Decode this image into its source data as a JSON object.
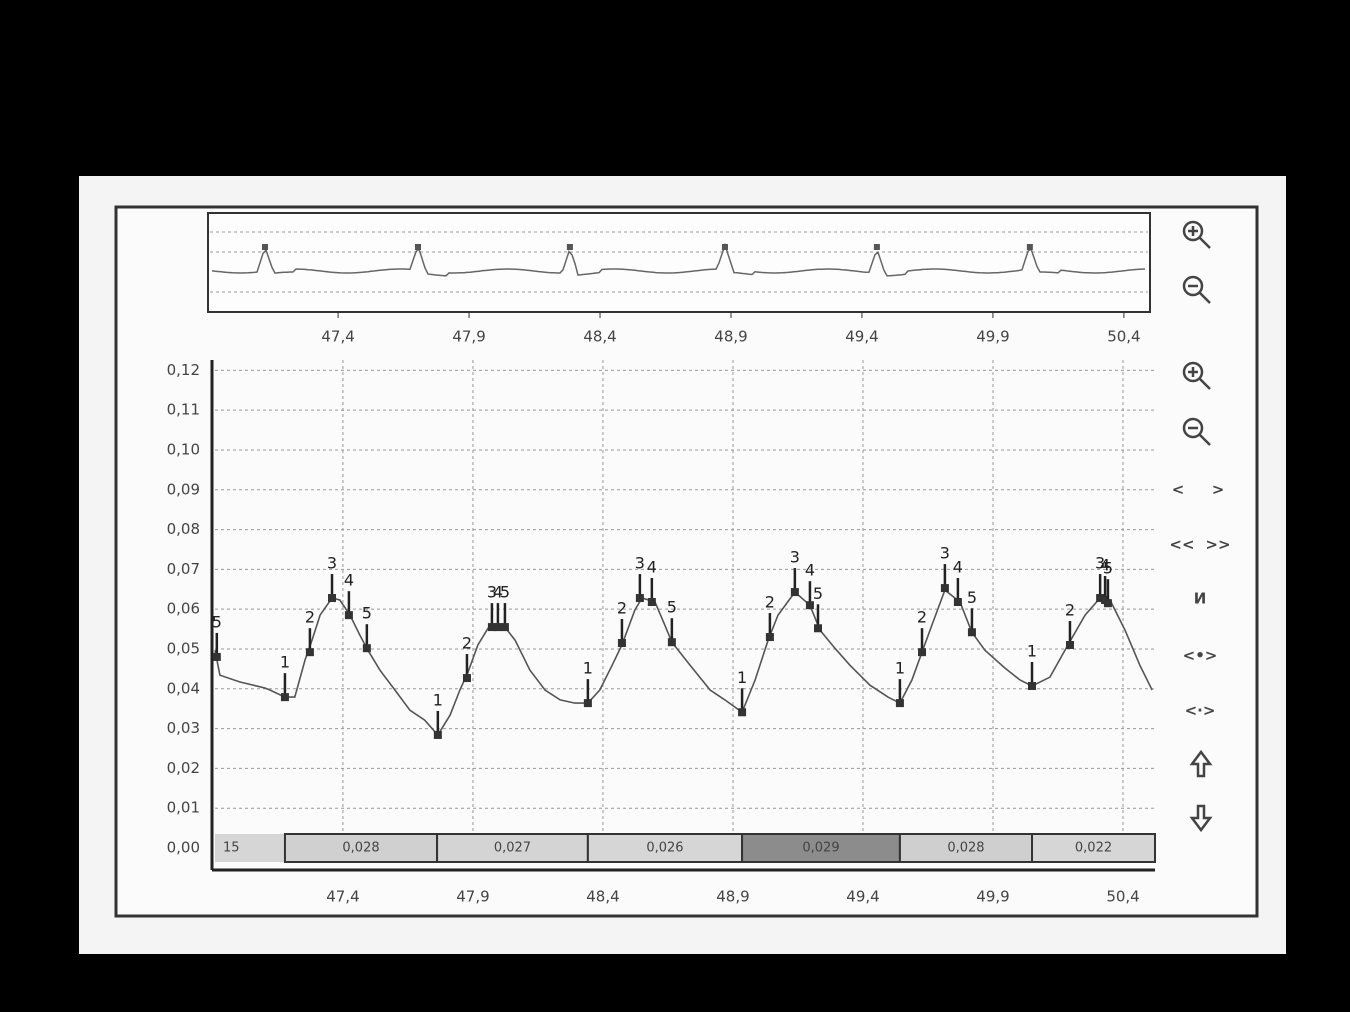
{
  "chart_data": [
    {
      "type": "ecg",
      "r_peaks": [
        47.121,
        47.705,
        48.285,
        48.877,
        49.457,
        50.041
      ],
      "xlim": [
        46.911,
        50.492
      ],
      "xticks": [
        {
          "value": 47.4,
          "label": "47,4"
        },
        {
          "value": 47.9,
          "label": "47,9"
        },
        {
          "value": 48.4,
          "label": "48,4"
        },
        {
          "value": 48.9,
          "label": "48,9"
        },
        {
          "value": 49.4,
          "label": "49,4"
        },
        {
          "value": 49.9,
          "label": "49,9"
        },
        {
          "value": 50.4,
          "label": "50,4"
        }
      ],
      "color": "#666666"
    },
    {
      "type": "line",
      "xlim": [
        46.908,
        50.523
      ],
      "ylim": [
        0,
        0.1226
      ],
      "grid": true,
      "xticks": [
        {
          "value": 47.4,
          "label": "47,4"
        },
        {
          "value": 47.9,
          "label": "47,9"
        },
        {
          "value": 48.4,
          "label": "48,4"
        },
        {
          "value": 48.9,
          "label": "48,9"
        },
        {
          "value": 49.4,
          "label": "49,4"
        },
        {
          "value": 49.9,
          "label": "49,9"
        },
        {
          "value": 50.4,
          "label": "50,4"
        }
      ],
      "yticks": [
        {
          "value": 0,
          "label": "0,00"
        },
        {
          "value": 0.01,
          "label": "0,01"
        },
        {
          "value": 0.02,
          "label": "0,02"
        },
        {
          "value": 0.03,
          "label": "0,03"
        },
        {
          "value": 0.04,
          "label": "0,04"
        },
        {
          "value": 0.05,
          "label": "0,05"
        },
        {
          "value": 0.06,
          "label": "0,06"
        },
        {
          "value": 0.07,
          "label": "0,07"
        },
        {
          "value": 0.08,
          "label": "0,08"
        },
        {
          "value": 0.09,
          "label": "0,09"
        },
        {
          "value": 0.1,
          "label": "0,10"
        },
        {
          "value": 0.11,
          "label": "0,11"
        },
        {
          "value": 0.12,
          "label": "0,12"
        }
      ],
      "series": [
        {
          "color": "#555555",
          "x": [
            46.908,
            46.927,
            47.004,
            47.1,
            47.119,
            47.177,
            47.215,
            47.254,
            47.281,
            47.312,
            47.358,
            47.388,
            47.427,
            47.465,
            47.496,
            47.542,
            47.6,
            47.658,
            47.715,
            47.765,
            47.812,
            47.85,
            47.881,
            47.919,
            47.958,
            48.023,
            48.062,
            48.119,
            48.177,
            48.235,
            48.292,
            48.342,
            48.388,
            48.435,
            48.473,
            48.523,
            48.55,
            48.6,
            48.638,
            48.665,
            48.735,
            48.812,
            48.869,
            48.935,
            48.985,
            49.035,
            49.073,
            49.138,
            49.196,
            49.235,
            49.292,
            49.35,
            49.427,
            49.496,
            49.542,
            49.588,
            49.627,
            49.665,
            49.715,
            49.773,
            49.819,
            49.869,
            49.946,
            50.004,
            50.05,
            50.119,
            50.188,
            50.254,
            50.312,
            50.35,
            50.408,
            50.465,
            50.512
          ],
          "values": [
            0.0497,
            0.0434,
            0.0417,
            0.0402,
            0.0397,
            0.0379,
            0.0379,
            0.0472,
            0.0522,
            0.0585,
            0.0628,
            0.0623,
            0.0585,
            0.0535,
            0.0497,
            0.0447,
            0.0397,
            0.0346,
            0.0321,
            0.0284,
            0.0334,
            0.0397,
            0.0442,
            0.051,
            0.0552,
            0.0555,
            0.0522,
            0.0447,
            0.0397,
            0.0372,
            0.0364,
            0.0364,
            0.0397,
            0.0459,
            0.051,
            0.0598,
            0.0628,
            0.0618,
            0.056,
            0.0517,
            0.0459,
            0.0397,
            0.0372,
            0.0341,
            0.0422,
            0.0522,
            0.0585,
            0.0643,
            0.061,
            0.0547,
            0.0502,
            0.0459,
            0.0409,
            0.0379,
            0.0364,
            0.0422,
            0.0492,
            0.056,
            0.0648,
            0.0618,
            0.0542,
            0.0497,
            0.0452,
            0.0422,
            0.0407,
            0.0429,
            0.051,
            0.0585,
            0.0628,
            0.0623,
            0.0547,
            0.0459,
            0.0397
          ]
        }
      ],
      "points": {
        "x": [
          46.915,
          47.177,
          47.273,
          47.358,
          47.423,
          47.492,
          47.765,
          47.877,
          47.973,
          47.996,
          48.023,
          48.342,
          48.473,
          48.542,
          48.588,
          48.665,
          48.935,
          49.042,
          49.138,
          49.196,
          49.227,
          49.542,
          49.627,
          49.715,
          49.765,
          49.819,
          50.05,
          50.196,
          50.312,
          50.331,
          50.342
        ],
        "values": [
          0.048,
          0.0379,
          0.0492,
          0.0628,
          0.0585,
          0.0502,
          0.0284,
          0.0427,
          0.0555,
          0.0555,
          0.0555,
          0.0364,
          0.0515,
          0.0628,
          0.0618,
          0.0517,
          0.0341,
          0.053,
          0.0643,
          0.061,
          0.0552,
          0.0364,
          0.0492,
          0.0653,
          0.0618,
          0.0542,
          0.0407,
          0.051,
          0.0628,
          0.0623,
          0.0615
        ],
        "labels": [
          "5",
          "1",
          "2",
          "3",
          "4",
          "5",
          "1",
          "2",
          "3",
          "4",
          "5",
          "1",
          "2",
          "3",
          "4",
          "5",
          "1",
          "2",
          "3",
          "4",
          "5",
          "1",
          "2",
          "3",
          "4",
          "5",
          "1",
          "2",
          "3",
          "4",
          "5"
        ]
      },
      "segments": {
        "edges": [
          46.908,
          47.177,
          47.762,
          48.342,
          48.935,
          49.542,
          50.05,
          50.523
        ],
        "labels": [
          "15",
          "0,028",
          "0,027",
          "0,026",
          "0,029",
          "0,028",
          "0,022"
        ],
        "colors": [
          "#d6d6d6",
          "#d0d0d0",
          "#d4d4d4",
          "#d6d6d6",
          "#8c8c8c",
          "#cfcfcf",
          "#d6d6d6"
        ]
      }
    }
  ],
  "toolbar": {
    "labels": [
      "<",
      ">",
      "<<",
      ">>",
      "И",
      "<•>",
      "<·>"
    ]
  }
}
